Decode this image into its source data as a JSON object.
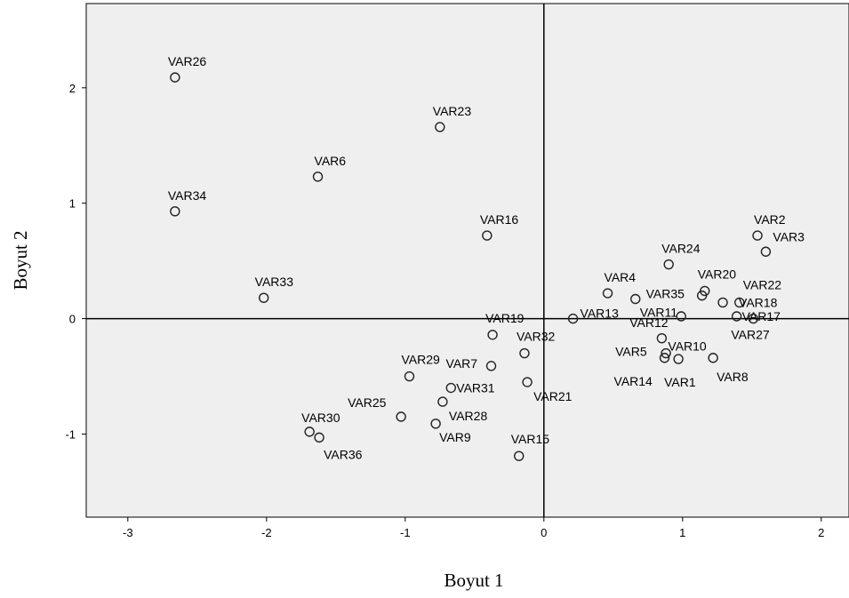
{
  "chart_data": {
    "type": "scatter",
    "xlabel": "Boyut 1",
    "ylabel": "Boyut 2",
    "xlim": [
      -3.3,
      2.2
    ],
    "ylim": [
      -1.72,
      2.73
    ],
    "xticks": [
      -3,
      -2,
      -1,
      0,
      1,
      2
    ],
    "yticks": [
      -1,
      0,
      1,
      2
    ],
    "grid": false,
    "reference_lines": {
      "x": 0,
      "y": 0
    },
    "colors": {
      "plot_background": "#efefef",
      "marker": "#222222",
      "axis": "#000000"
    },
    "points": [
      {
        "label": "VAR26",
        "x": -2.66,
        "y": 2.09
      },
      {
        "label": "VAR23",
        "x": -0.75,
        "y": 1.66
      },
      {
        "label": "VAR6",
        "x": -1.63,
        "y": 1.23
      },
      {
        "label": "VAR34",
        "x": -2.66,
        "y": 0.93
      },
      {
        "label": "VAR16",
        "x": -0.41,
        "y": 0.72
      },
      {
        "label": "VAR33",
        "x": -2.02,
        "y": 0.18
      },
      {
        "label": "VAR2",
        "x": 1.54,
        "y": 0.72
      },
      {
        "label": "VAR3",
        "x": 1.6,
        "y": 0.58
      },
      {
        "label": "VAR24",
        "x": 0.9,
        "y": 0.47
      },
      {
        "label": "VAR20",
        "x": 1.16,
        "y": 0.24
      },
      {
        "label": "VAR22",
        "x": 1.41,
        "y": 0.14
      },
      {
        "label": "VAR35",
        "x": 1.14,
        "y": 0.2
      },
      {
        "label": "VAR4",
        "x": 0.46,
        "y": 0.22
      },
      {
        "label": "VAR18",
        "x": 1.29,
        "y": 0.14
      },
      {
        "label": "VAR13",
        "x": 0.21,
        "y": 0.0
      },
      {
        "label": "VAR11",
        "x": 0.66,
        "y": 0.17
      },
      {
        "label": "VAR12",
        "x": 0.99,
        "y": 0.02
      },
      {
        "label": "VAR17",
        "x": 1.39,
        "y": 0.02
      },
      {
        "label": "VAR27",
        "x": 1.51,
        "y": 0.0
      },
      {
        "label": "VAR19",
        "x": -0.37,
        "y": -0.14
      },
      {
        "label": "VAR7",
        "x": -0.38,
        "y": -0.41
      },
      {
        "label": "VAR32",
        "x": -0.14,
        "y": -0.3
      },
      {
        "label": "VAR10",
        "x": 0.85,
        "y": -0.17
      },
      {
        "label": "VAR5",
        "x": 0.88,
        "y": -0.3
      },
      {
        "label": "VAR8",
        "x": 1.22,
        "y": -0.34
      },
      {
        "label": "VAR14",
        "x": 0.87,
        "y": -0.34
      },
      {
        "label": "VAR1",
        "x": 0.97,
        "y": -0.35
      },
      {
        "label": "VAR29",
        "x": -0.97,
        "y": -0.5
      },
      {
        "label": "VAR31",
        "x": -0.67,
        "y": -0.6
      },
      {
        "label": "VAR21",
        "x": -0.12,
        "y": -0.55
      },
      {
        "label": "VAR25",
        "x": -1.03,
        "y": -0.85
      },
      {
        "label": "VAR28",
        "x": -0.73,
        "y": -0.72
      },
      {
        "label": "VAR9",
        "x": -0.78,
        "y": -0.91
      },
      {
        "label": "VAR30",
        "x": -1.69,
        "y": -0.98
      },
      {
        "label": "VAR36",
        "x": -1.62,
        "y": -1.03
      },
      {
        "label": "VAR15",
        "x": -0.18,
        "y": -1.19
      }
    ]
  }
}
